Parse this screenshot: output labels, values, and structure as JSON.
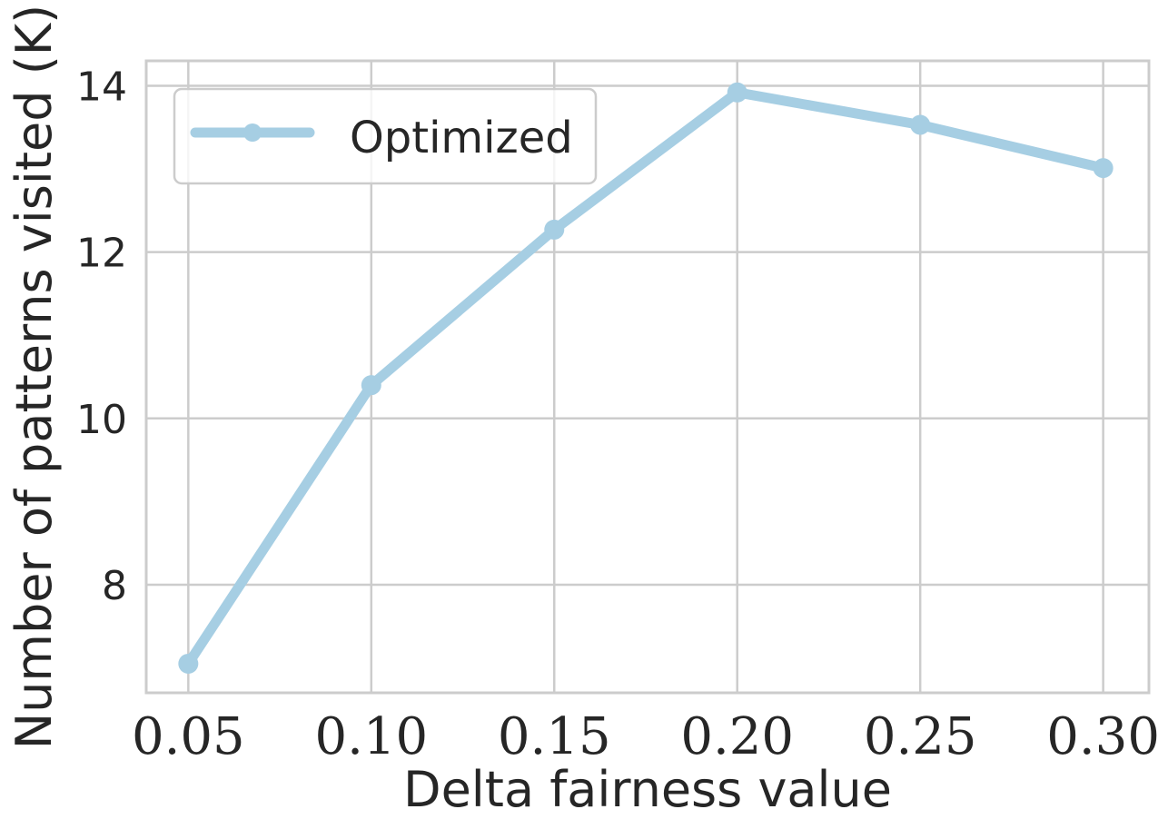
{
  "chart_data": {
    "type": "line",
    "xlabel": "Delta fairness value",
    "ylabel": "Number of patterns visited (K)",
    "x": [
      0.05,
      0.1,
      0.15,
      0.2,
      0.25,
      0.3
    ],
    "x_tick_labels": [
      "0.05",
      "0.10",
      "0.15",
      "0.20",
      "0.25",
      "0.30"
    ],
    "y_ticks": [
      8,
      10,
      12,
      14
    ],
    "y_tick_labels": [
      "8",
      "10",
      "12",
      "14"
    ],
    "xlim": [
      0.0385,
      0.3125
    ],
    "ylim": [
      6.7,
      14.3
    ],
    "grid": true,
    "legend_position": "top-left",
    "series": [
      {
        "name": "Optimized",
        "color": "#a6cee3",
        "marker": "circle",
        "values": [
          7.05,
          10.4,
          12.27,
          13.92,
          13.53,
          13.01
        ]
      }
    ]
  }
}
